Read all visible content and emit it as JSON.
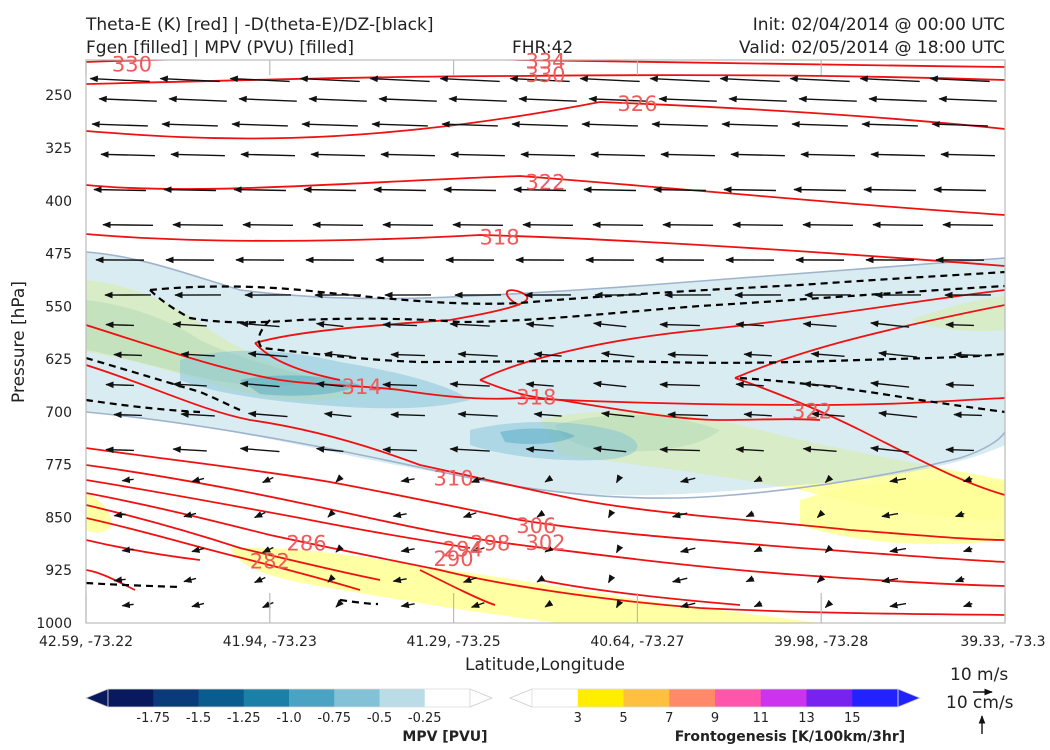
{
  "header": {
    "line1_left": "Theta-E (K) [red] | -D(theta-E)/DZ-[black]",
    "line2_left": "Fgen [filled] | MPV (PVU) [filled]",
    "fhr": "FHR:42",
    "init": "Init: 02/04/2014 @ 00:00 UTC",
    "valid": "Valid: 02/05/2014 @ 18:00 UTC"
  },
  "wind_key": {
    "horizontal": "10 m/s",
    "vertical": "10 cm/s"
  },
  "colors": {
    "theta_e": "#ee1111",
    "stability": "#000000",
    "wind": "#111111",
    "frame": "#bbbbbb"
  },
  "chart_data": {
    "type": "contour",
    "xlabel": "Latitude,Longitude",
    "ylabel": "Pressure [hPa]",
    "x_ticks": [
      "42.59, -73.22",
      "41.94, -73.23",
      "41.29, -73.25",
      "40.64, -73.27",
      "39.98, -73.28",
      "39.33, -73.3"
    ],
    "y_ticks": [
      250,
      325,
      400,
      475,
      550,
      625,
      700,
      775,
      850,
      925,
      1000
    ],
    "ylim": [
      1000,
      200
    ],
    "y_axis": "inverted",
    "theta_e_contour_labels": [
      {
        "text": "330",
        "x": 0.05,
        "p": 212,
        "color": "#ee1111"
      },
      {
        "text": "334",
        "x": 0.5,
        "p": 208
      },
      {
        "text": "330",
        "x": 0.5,
        "p": 227
      },
      {
        "text": "326",
        "x": 0.6,
        "p": 268
      },
      {
        "text": "322",
        "x": 0.5,
        "p": 380
      },
      {
        "text": "318",
        "x": 0.45,
        "p": 458
      },
      {
        "text": "314",
        "x": 0.3,
        "p": 670
      },
      {
        "text": "318",
        "x": 0.49,
        "p": 685
      },
      {
        "text": "322",
        "x": 0.79,
        "p": 705
      },
      {
        "text": "310",
        "x": 0.4,
        "p": 800
      },
      {
        "text": "306",
        "x": 0.49,
        "p": 868
      },
      {
        "text": "302",
        "x": 0.5,
        "p": 892
      },
      {
        "text": "298",
        "x": 0.44,
        "p": 893
      },
      {
        "text": "294",
        "x": 0.41,
        "p": 901
      },
      {
        "text": "290",
        "x": 0.4,
        "p": 915
      },
      {
        "text": "286",
        "x": 0.24,
        "p": 893
      },
      {
        "text": "282",
        "x": 0.2,
        "p": 918
      }
    ],
    "mpv_colorbar": {
      "title": "MPV [PVU]",
      "levels": [
        "-1.75",
        "-1.5",
        "-1.25",
        "-1.0",
        "-0.75",
        "-0.5",
        "-0.25"
      ],
      "colors": [
        "#08195e",
        "#0b3a7a",
        "#0a5b8e",
        "#1b80a6",
        "#4aa3c2",
        "#82c1d6",
        "#b9dce7",
        "#ffffff"
      ]
    },
    "fgen_colorbar": {
      "title": "Frontogenesis [K/100km/3hr]",
      "levels": [
        "3",
        "5",
        "7",
        "9",
        "11",
        "13",
        "15"
      ],
      "colors": [
        "#ffffff",
        "#ffee00",
        "#ffc040",
        "#ff8a6a",
        "#ff55aa",
        "#cc33ee",
        "#7722ee",
        "#2222ff"
      ]
    }
  }
}
